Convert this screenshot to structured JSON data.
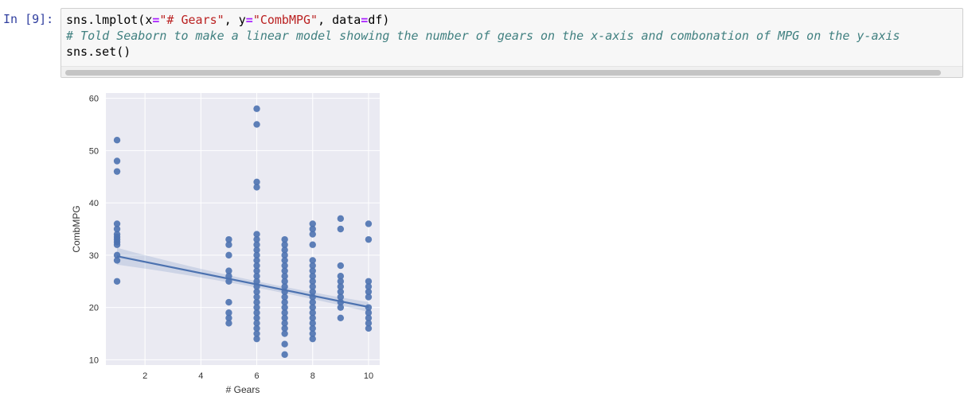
{
  "cell": {
    "prompt": "In [9]:",
    "code": {
      "line1": {
        "p1": "sns.lmplot(x",
        "eq1": "=",
        "s1": "\"# Gears\"",
        "p2": ", y",
        "eq2": "=",
        "s2": "\"CombMPG\"",
        "p3": ", data",
        "eq3": "=",
        "p4": "df)"
      },
      "line2": "# Told Seaborn to make a linear model showing the number of gears on the x-axis and combonation of MPG on the y-axis",
      "line3": "sns.set()"
    }
  },
  "chart_data": {
    "type": "scatter",
    "xlabel": "# Gears",
    "ylabel": "CombMPG",
    "xlim": [
      0.6,
      10.4
    ],
    "ylim": [
      9,
      61
    ],
    "xticks": [
      2,
      4,
      6,
      8,
      10
    ],
    "yticks": [
      10,
      20,
      30,
      40,
      50,
      60
    ],
    "grid": true,
    "point_color": "#4c72b0",
    "background_color": "#eaeaf2",
    "regression": {
      "x": [
        1,
        10
      ],
      "y": [
        29.8,
        20.1
      ]
    },
    "points": [
      {
        "x": 1,
        "y": 52
      },
      {
        "x": 1,
        "y": 48
      },
      {
        "x": 1,
        "y": 46
      },
      {
        "x": 1,
        "y": 36
      },
      {
        "x": 1,
        "y": 35
      },
      {
        "x": 1,
        "y": 34
      },
      {
        "x": 1,
        "y": 33.5
      },
      {
        "x": 1,
        "y": 33
      },
      {
        "x": 1,
        "y": 32.5
      },
      {
        "x": 1,
        "y": 32
      },
      {
        "x": 1,
        "y": 30
      },
      {
        "x": 1,
        "y": 29
      },
      {
        "x": 1,
        "y": 25
      },
      {
        "x": 5,
        "y": 33
      },
      {
        "x": 5,
        "y": 32
      },
      {
        "x": 5,
        "y": 30
      },
      {
        "x": 5,
        "y": 27
      },
      {
        "x": 5,
        "y": 26
      },
      {
        "x": 5,
        "y": 25
      },
      {
        "x": 5,
        "y": 21
      },
      {
        "x": 5,
        "y": 19
      },
      {
        "x": 5,
        "y": 18
      },
      {
        "x": 5,
        "y": 17
      },
      {
        "x": 6,
        "y": 58
      },
      {
        "x": 6,
        "y": 55
      },
      {
        "x": 6,
        "y": 44
      },
      {
        "x": 6,
        "y": 43
      },
      {
        "x": 6,
        "y": 34
      },
      {
        "x": 6,
        "y": 33
      },
      {
        "x": 6,
        "y": 32
      },
      {
        "x": 6,
        "y": 31
      },
      {
        "x": 6,
        "y": 30
      },
      {
        "x": 6,
        "y": 29
      },
      {
        "x": 6,
        "y": 28
      },
      {
        "x": 6,
        "y": 27
      },
      {
        "x": 6,
        "y": 26
      },
      {
        "x": 6,
        "y": 25
      },
      {
        "x": 6,
        "y": 24
      },
      {
        "x": 6,
        "y": 23
      },
      {
        "x": 6,
        "y": 22
      },
      {
        "x": 6,
        "y": 21
      },
      {
        "x": 6,
        "y": 20
      },
      {
        "x": 6,
        "y": 19
      },
      {
        "x": 6,
        "y": 18
      },
      {
        "x": 6,
        "y": 17
      },
      {
        "x": 6,
        "y": 16
      },
      {
        "x": 6,
        "y": 15
      },
      {
        "x": 6,
        "y": 14
      },
      {
        "x": 7,
        "y": 33
      },
      {
        "x": 7,
        "y": 32
      },
      {
        "x": 7,
        "y": 31
      },
      {
        "x": 7,
        "y": 30
      },
      {
        "x": 7,
        "y": 29
      },
      {
        "x": 7,
        "y": 28
      },
      {
        "x": 7,
        "y": 27
      },
      {
        "x": 7,
        "y": 26
      },
      {
        "x": 7,
        "y": 25
      },
      {
        "x": 7,
        "y": 24
      },
      {
        "x": 7,
        "y": 23
      },
      {
        "x": 7,
        "y": 22
      },
      {
        "x": 7,
        "y": 21
      },
      {
        "x": 7,
        "y": 20
      },
      {
        "x": 7,
        "y": 19
      },
      {
        "x": 7,
        "y": 18
      },
      {
        "x": 7,
        "y": 17
      },
      {
        "x": 7,
        "y": 16
      },
      {
        "x": 7,
        "y": 15
      },
      {
        "x": 7,
        "y": 13
      },
      {
        "x": 7,
        "y": 11
      },
      {
        "x": 8,
        "y": 36
      },
      {
        "x": 8,
        "y": 35
      },
      {
        "x": 8,
        "y": 34
      },
      {
        "x": 8,
        "y": 32
      },
      {
        "x": 8,
        "y": 29
      },
      {
        "x": 8,
        "y": 28
      },
      {
        "x": 8,
        "y": 27
      },
      {
        "x": 8,
        "y": 26
      },
      {
        "x": 8,
        "y": 25
      },
      {
        "x": 8,
        "y": 24
      },
      {
        "x": 8,
        "y": 23
      },
      {
        "x": 8,
        "y": 22
      },
      {
        "x": 8,
        "y": 21
      },
      {
        "x": 8,
        "y": 20
      },
      {
        "x": 8,
        "y": 19
      },
      {
        "x": 8,
        "y": 18
      },
      {
        "x": 8,
        "y": 17
      },
      {
        "x": 8,
        "y": 16
      },
      {
        "x": 8,
        "y": 15
      },
      {
        "x": 8,
        "y": 14
      },
      {
        "x": 9,
        "y": 37
      },
      {
        "x": 9,
        "y": 35
      },
      {
        "x": 9,
        "y": 28
      },
      {
        "x": 9,
        "y": 26
      },
      {
        "x": 9,
        "y": 25
      },
      {
        "x": 9,
        "y": 24
      },
      {
        "x": 9,
        "y": 23
      },
      {
        "x": 9,
        "y": 22
      },
      {
        "x": 9,
        "y": 21
      },
      {
        "x": 9,
        "y": 20
      },
      {
        "x": 9,
        "y": 18
      },
      {
        "x": 10,
        "y": 36
      },
      {
        "x": 10,
        "y": 33
      },
      {
        "x": 10,
        "y": 25
      },
      {
        "x": 10,
        "y": 24
      },
      {
        "x": 10,
        "y": 23
      },
      {
        "x": 10,
        "y": 22
      },
      {
        "x": 10,
        "y": 20
      },
      {
        "x": 10,
        "y": 19
      },
      {
        "x": 10,
        "y": 18
      },
      {
        "x": 10,
        "y": 17
      },
      {
        "x": 10,
        "y": 16
      }
    ]
  }
}
